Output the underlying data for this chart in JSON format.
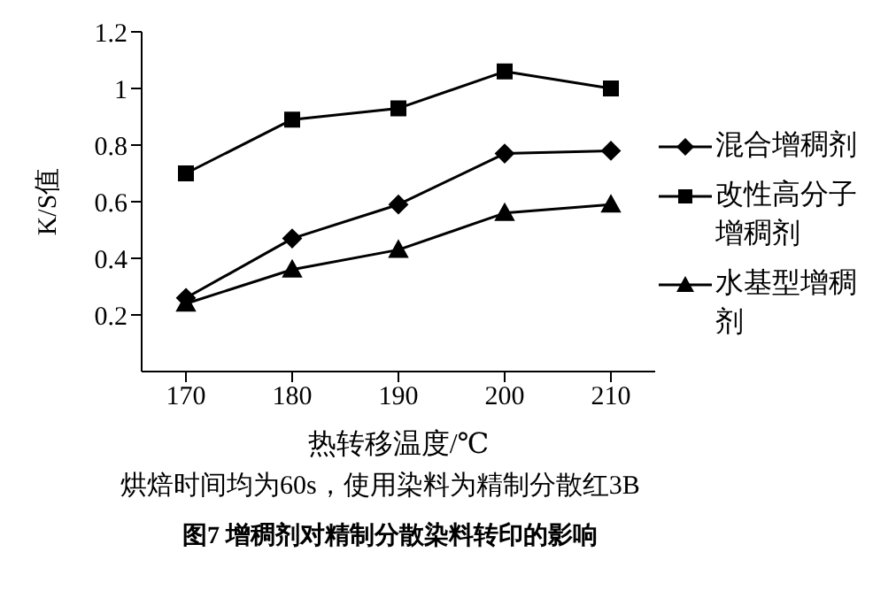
{
  "chart_data": {
    "type": "line",
    "title": "图7 增稠剂对精制分散染料转印的影响",
    "xlabel": "热转移温度/℃",
    "ylabel": "K/S值",
    "annotations": [
      "烘焙时间均为60s，使用染料为精制分散红3B"
    ],
    "categories": [
      "170",
      "180",
      "190",
      "200",
      "210"
    ],
    "ylim": [
      0,
      1.2
    ],
    "yticks": [
      0.2,
      0.4,
      0.6,
      0.8,
      1,
      1.2
    ],
    "grid": false,
    "legend": "right",
    "series": [
      {
        "name": "混合增稠剂",
        "color": "#000000",
        "marker": "diamond",
        "values": [
          0.26,
          0.47,
          0.59,
          0.77,
          0.78
        ]
      },
      {
        "name": "改性高分子增稠剂",
        "color": "#000000",
        "marker": "square",
        "values": [
          0.7,
          0.89,
          0.93,
          1.06,
          1.0
        ]
      },
      {
        "name": "水基型增稠剂",
        "color": "#000000",
        "marker": "triangle",
        "values": [
          0.24,
          0.36,
          0.43,
          0.56,
          0.59
        ]
      }
    ]
  }
}
